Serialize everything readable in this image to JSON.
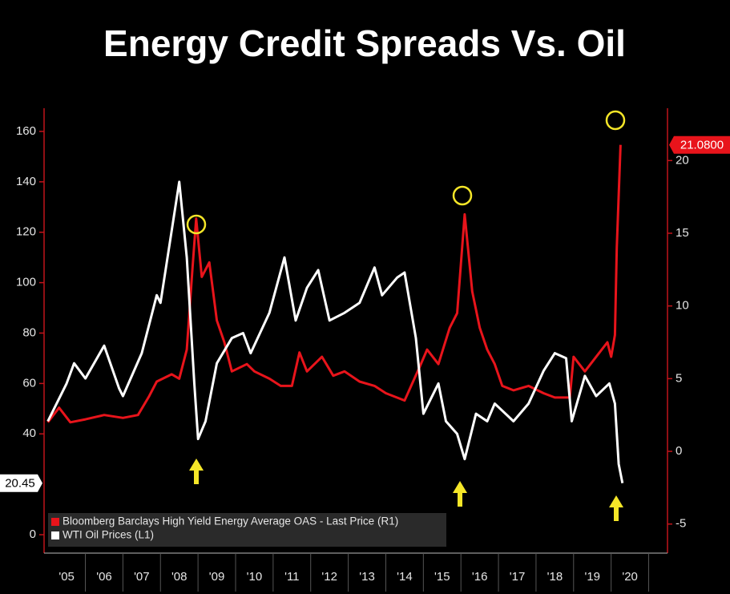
{
  "chart_data": {
    "type": "line",
    "title": "Energy Credit Spreads Vs. Oil",
    "xlim": [
      2004.9,
      2021.5
    ],
    "xticks": [
      {
        "value": 2005.5,
        "label": "'05"
      },
      {
        "value": 2006.5,
        "label": "'06"
      },
      {
        "value": 2007.5,
        "label": "'07"
      },
      {
        "value": 2008.5,
        "label": "'08"
      },
      {
        "value": 2009.5,
        "label": "'09"
      },
      {
        "value": 2010.5,
        "label": "'10"
      },
      {
        "value": 2011.5,
        "label": "'11"
      },
      {
        "value": 2012.5,
        "label": "'12"
      },
      {
        "value": 2013.5,
        "label": "'13"
      },
      {
        "value": 2014.5,
        "label": "'14"
      },
      {
        "value": 2015.5,
        "label": "'15"
      },
      {
        "value": 2016.5,
        "label": "'16"
      },
      {
        "value": 2017.5,
        "label": "'17"
      },
      {
        "value": 2018.5,
        "label": "'18"
      },
      {
        "value": 2019.5,
        "label": "'19"
      },
      {
        "value": 2020.5,
        "label": "'20"
      }
    ],
    "ylim": [
      -7.3,
      169.2
    ],
    "yticks": [
      0,
      40,
      60,
      80,
      100,
      120,
      140,
      160
    ],
    "y2lim": [
      -7,
      23.6
    ],
    "y2ticks": [
      -5,
      0,
      5,
      10,
      15,
      20
    ],
    "series": [
      {
        "name": "Bloomberg Barclays High Yield Energy Average OAS - Last Price (R1)",
        "color": "#e8141b",
        "axis": "y2",
        "last_label": "21.0800",
        "x": [
          2005.0,
          2005.3,
          2005.6,
          2006.0,
          2006.5,
          2007.0,
          2007.4,
          2007.7,
          2007.9,
          2008.3,
          2008.5,
          2008.7,
          2008.85,
          2008.95,
          2009.1,
          2009.3,
          2009.5,
          2009.7,
          2009.9,
          2010.3,
          2010.5,
          2010.9,
          2011.2,
          2011.5,
          2011.7,
          2011.9,
          2012.3,
          2012.6,
          2012.9,
          2013.3,
          2013.7,
          2014.0,
          2014.5,
          2014.9,
          2015.1,
          2015.4,
          2015.7,
          2015.9,
          2016.1,
          2016.3,
          2016.5,
          2016.7,
          2016.9,
          2017.1,
          2017.4,
          2017.8,
          2018.2,
          2018.5,
          2018.9,
          2019.0,
          2019.3,
          2019.6,
          2019.9,
          2020.0,
          2020.1,
          2020.15,
          2020.25
        ],
        "values": [
          2.0,
          3.0,
          2.0,
          2.2,
          2.5,
          2.3,
          2.5,
          3.8,
          4.8,
          5.3,
          5.0,
          7.0,
          12.5,
          16.0,
          12.0,
          13.0,
          9.0,
          7.5,
          5.5,
          6.0,
          5.5,
          5.0,
          4.5,
          4.5,
          6.8,
          5.5,
          6.5,
          5.2,
          5.5,
          4.8,
          4.5,
          4.0,
          3.5,
          5.8,
          7.0,
          6.0,
          8.5,
          9.5,
          16.3,
          11.0,
          8.5,
          7.0,
          6.0,
          4.5,
          4.2,
          4.5,
          4.0,
          3.7,
          3.7,
          6.5,
          5.5,
          6.5,
          7.5,
          6.5,
          8.0,
          14.0,
          21.08
        ]
      },
      {
        "name": "WTI Oil Prices (L1)",
        "color": "#ffffff",
        "axis": "y",
        "last_label": "20.45",
        "x": [
          2005.0,
          2005.5,
          2005.7,
          2006.0,
          2006.5,
          2006.9,
          2007.0,
          2007.5,
          2007.9,
          2008.0,
          2008.5,
          2008.7,
          2008.9,
          2009.0,
          2009.2,
          2009.5,
          2009.9,
          2010.2,
          2010.4,
          2010.9,
          2011.3,
          2011.6,
          2011.9,
          2012.2,
          2012.5,
          2012.9,
          2013.3,
          2013.7,
          2013.9,
          2014.3,
          2014.5,
          2014.8,
          2015.0,
          2015.4,
          2015.6,
          2015.9,
          2016.1,
          2016.4,
          2016.7,
          2016.9,
          2017.4,
          2017.8,
          2018.2,
          2018.5,
          2018.8,
          2018.95,
          2019.3,
          2019.6,
          2019.95,
          2020.1,
          2020.2,
          2020.3
        ],
        "values": [
          45,
          60,
          68,
          62,
          75,
          58,
          55,
          72,
          95,
          92,
          140,
          110,
          60,
          38,
          45,
          68,
          78,
          80,
          72,
          88,
          110,
          85,
          98,
          105,
          85,
          88,
          92,
          106,
          95,
          102,
          104,
          78,
          48,
          60,
          45,
          40,
          30,
          48,
          45,
          52,
          45,
          52,
          65,
          72,
          70,
          45,
          63,
          55,
          60,
          52,
          28,
          20.45
        ]
      }
    ]
  }
}
